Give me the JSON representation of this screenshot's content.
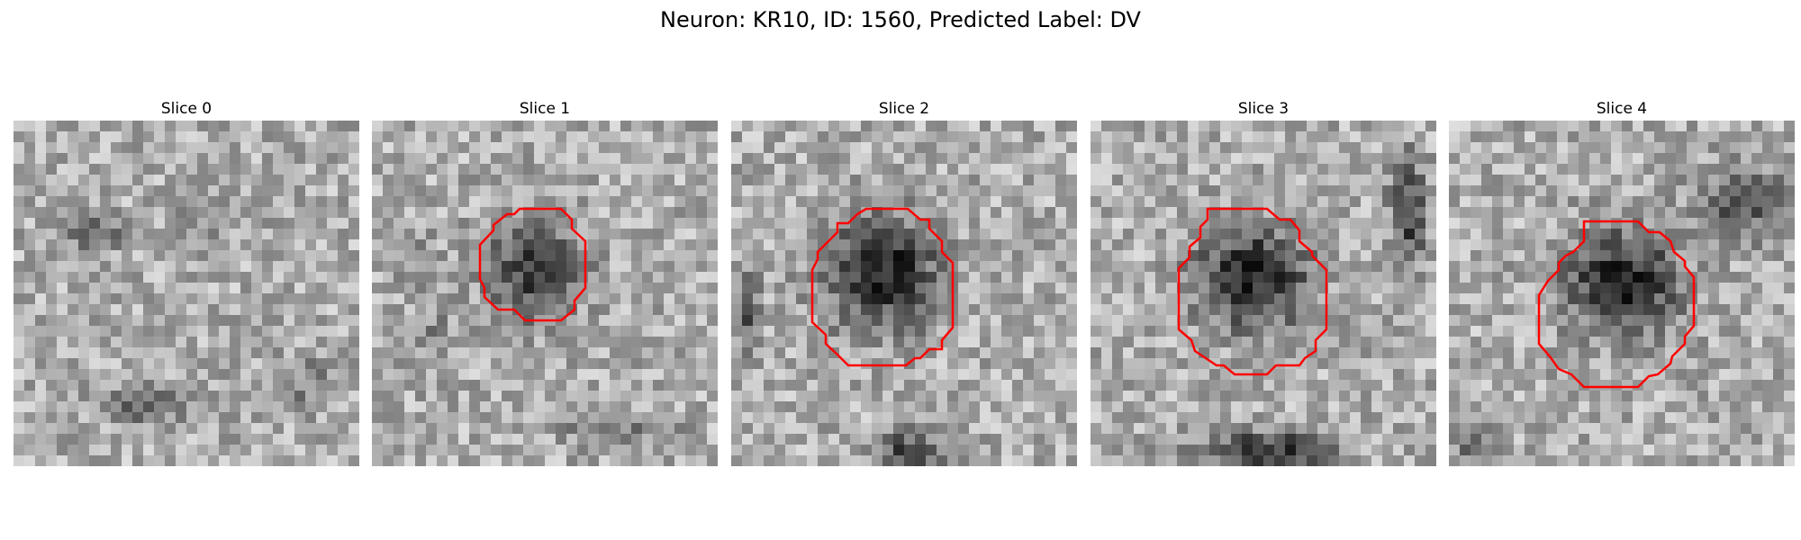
{
  "figure": {
    "title": "Neuron: KR10, ID: 1560, Predicted Label: DV"
  },
  "panels": [
    {
      "title": "Slice 0"
    },
    {
      "title": "Slice 1"
    },
    {
      "title": "Slice 2"
    },
    {
      "title": "Slice 3"
    },
    {
      "title": "Slice 4"
    }
  ],
  "style": {
    "contour_color": "#ff0000",
    "colormap": "gray"
  }
}
